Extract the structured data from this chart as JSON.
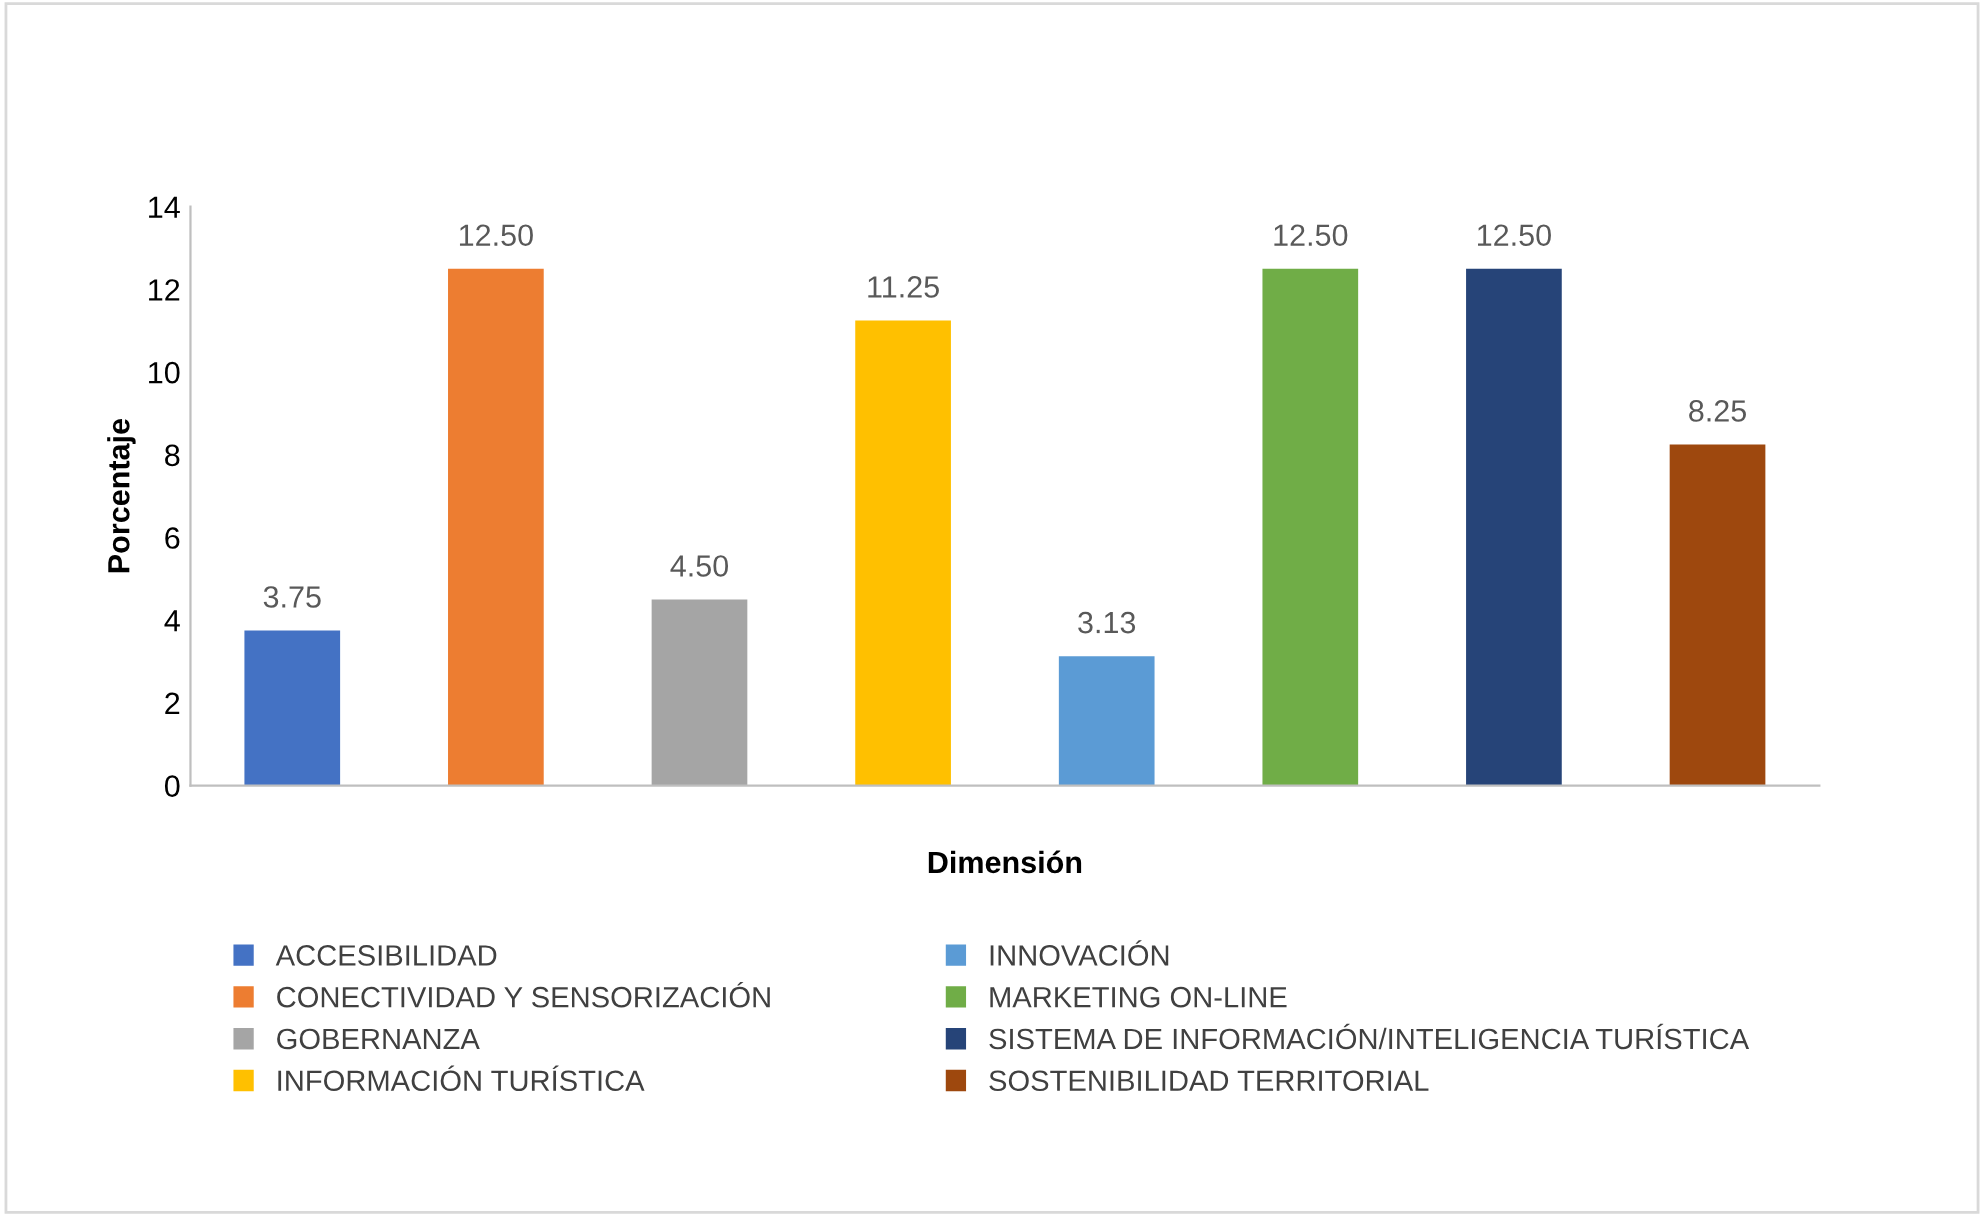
{
  "chart_data": {
    "type": "bar",
    "xlabel": "Dimensión",
    "ylabel": "Porcentaje",
    "categories": [
      null,
      null,
      null,
      null,
      null,
      null,
      null,
      null
    ],
    "series": [
      {
        "name": "ACCESIBILIDAD",
        "color": "#4472c4",
        "values": [
          3.75,
          null,
          null,
          null,
          null,
          null,
          null,
          null
        ],
        "value_labels": [
          "3.75",
          null,
          null,
          null,
          null,
          null,
          null,
          null
        ]
      },
      {
        "name": "CONECTIVIDAD Y SENSORIZACIÓN",
        "color": "#ed7d31",
        "values": [
          null,
          12.5,
          null,
          null,
          null,
          null,
          null,
          null
        ],
        "value_labels": [
          null,
          "12.50",
          null,
          null,
          null,
          null,
          null,
          null
        ]
      },
      {
        "name": "GOBERNANZA",
        "color": "#a5a5a5",
        "values": [
          null,
          null,
          4.5,
          null,
          null,
          null,
          null,
          null
        ],
        "value_labels": [
          null,
          null,
          "4.50",
          null,
          null,
          null,
          null,
          null
        ]
      },
      {
        "name": "INFORMACIÓN TURÍSTICA",
        "color": "#ffc000",
        "values": [
          null,
          null,
          null,
          11.25,
          null,
          null,
          null,
          null
        ],
        "value_labels": [
          null,
          null,
          null,
          "11.25",
          null,
          null,
          null,
          null
        ]
      },
      {
        "name": "INNOVACIÓN",
        "color": "#5b9bd5",
        "values": [
          null,
          null,
          null,
          null,
          3.13,
          null,
          null,
          null
        ],
        "value_labels": [
          null,
          null,
          null,
          null,
          "3.13",
          null,
          null,
          null
        ]
      },
      {
        "name": "MARKETING ON-LINE",
        "color": "#70ad47",
        "values": [
          null,
          null,
          null,
          null,
          null,
          12.5,
          null,
          null
        ],
        "value_labels": [
          null,
          null,
          null,
          null,
          null,
          "12.50",
          null,
          null
        ]
      },
      {
        "name": "SISTEMA DE INFORMACIÓN/INTELIGENCIA TURÍSTICA",
        "color": "#264478",
        "values": [
          null,
          null,
          null,
          null,
          null,
          null,
          12.5,
          null
        ],
        "value_labels": [
          null,
          null,
          null,
          null,
          null,
          null,
          "12.50",
          null
        ]
      },
      {
        "name": "SOSTENIBILIDAD TERRITORIAL",
        "color": "#9e480e",
        "values": [
          null,
          null,
          null,
          null,
          null,
          null,
          null,
          8.25
        ],
        "value_labels": [
          null,
          null,
          null,
          null,
          null,
          null,
          null,
          "8.25"
        ]
      }
    ],
    "ylim": [
      0,
      14
    ],
    "yticks": [
      0,
      2,
      4,
      6,
      8,
      10,
      12,
      14
    ],
    "grid": false,
    "legend": "bottom"
  }
}
